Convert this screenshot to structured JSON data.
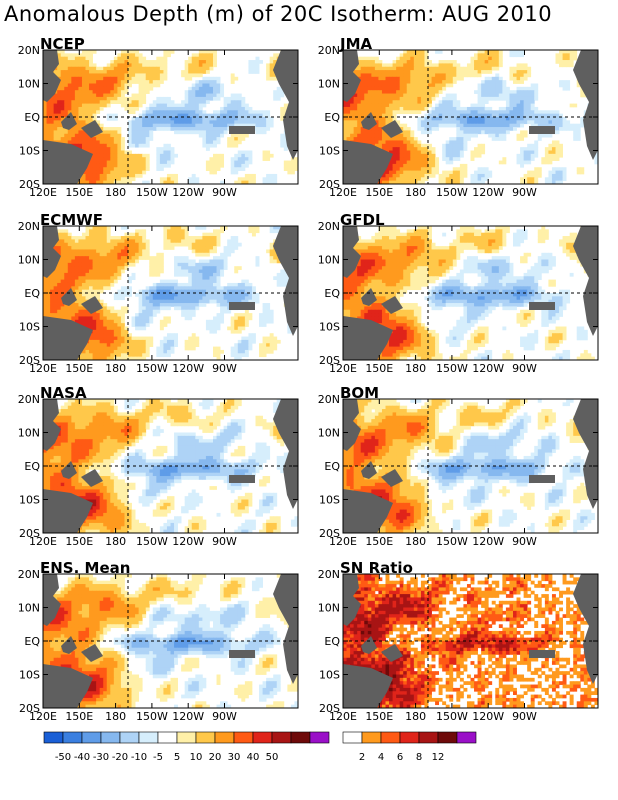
{
  "title": "Anomalous Depth (m) of 20C Isotherm: AUG 2010",
  "chart_data": [
    {
      "type": "heatmap",
      "title": "NCEP",
      "x_ticks": [
        "120E",
        "150E",
        "180",
        "150W",
        "120W",
        "90W"
      ],
      "y_ticks": [
        "20N",
        "10N",
        "EQ",
        "10S",
        "20S"
      ]
    },
    {
      "type": "heatmap",
      "title": "JMA",
      "x_ticks": [
        "120E",
        "150E",
        "180",
        "150W",
        "120W",
        "90W"
      ],
      "y_ticks": [
        "20N",
        "10N",
        "EQ",
        "10S",
        "20S"
      ]
    },
    {
      "type": "heatmap",
      "title": "ECMWF",
      "x_ticks": [
        "120E",
        "150E",
        "180",
        "150W",
        "120W",
        "90W"
      ],
      "y_ticks": [
        "20N",
        "10N",
        "EQ",
        "10S",
        "20S"
      ]
    },
    {
      "type": "heatmap",
      "title": "GFDL",
      "x_ticks": [
        "120E",
        "150E",
        "180",
        "150W",
        "120W",
        "90W"
      ],
      "y_ticks": [
        "20N",
        "10N",
        "EQ",
        "10S",
        "20S"
      ]
    },
    {
      "type": "heatmap",
      "title": "NASA",
      "x_ticks": [
        "120E",
        "150E",
        "180",
        "150W",
        "120W",
        "90W"
      ],
      "y_ticks": [
        "20N",
        "10N",
        "EQ",
        "10S",
        "20S"
      ]
    },
    {
      "type": "heatmap",
      "title": "BOM",
      "x_ticks": [
        "120E",
        "150E",
        "180",
        "150W",
        "120W",
        "90W"
      ],
      "y_ticks": [
        "20N",
        "10N",
        "EQ",
        "10S",
        "20S"
      ]
    },
    {
      "type": "heatmap",
      "title": "ENS. Mean",
      "x_ticks": [
        "120E",
        "150E",
        "180",
        "150W",
        "120W",
        "90W"
      ],
      "y_ticks": [
        "20N",
        "10N",
        "EQ",
        "10S",
        "20S"
      ]
    },
    {
      "type": "heatmap",
      "title": "SN Ratio",
      "x_ticks": [
        "120E",
        "150E",
        "180",
        "150W",
        "120W",
        "90W"
      ],
      "y_ticks": [
        "20N",
        "10N",
        "EQ",
        "10S",
        "20S"
      ]
    }
  ],
  "colorbar_depth": {
    "labels": [
      "-50",
      "-40",
      "-30",
      "-20",
      "-10",
      "-5",
      "5",
      "10",
      "20",
      "30",
      "40",
      "50"
    ],
    "colors": [
      "#1a5fd6",
      "#3a7fe0",
      "#5f9ce8",
      "#86b8ef",
      "#aed3f6",
      "#d6eefc",
      "#ffffff",
      "#fff0a8",
      "#ffc84a",
      "#ff9a1e",
      "#ff5a14",
      "#e0241a",
      "#a81414",
      "#6e0a0a",
      "#9a10c8"
    ]
  },
  "colorbar_sn": {
    "labels": [
      "2",
      "4",
      "6",
      "8",
      "12"
    ],
    "colors": [
      "#ffffff",
      "#ff9a1e",
      "#ff5a14",
      "#e0241a",
      "#a81414",
      "#6e0a0a",
      "#9a10c8"
    ]
  },
  "land_color": "#5f5f5f"
}
